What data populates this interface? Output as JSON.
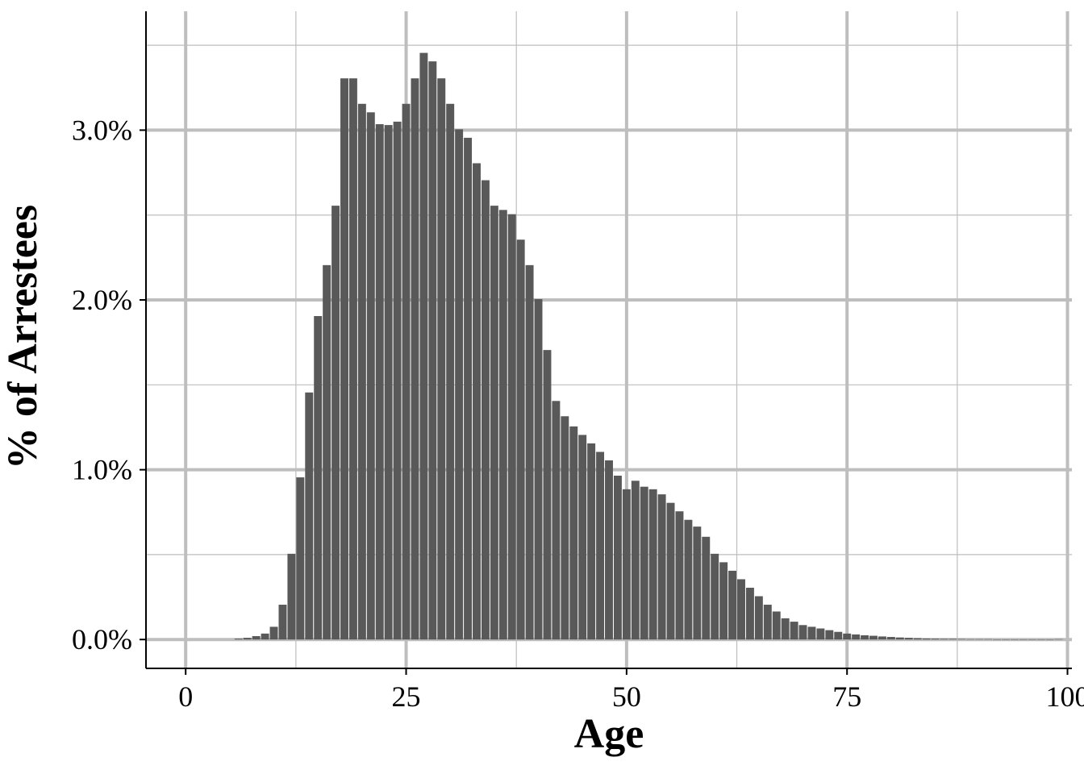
{
  "chart_data": {
    "type": "bar",
    "title": "",
    "xlabel": "Age",
    "ylabel": "% of Arrestees",
    "xlim": [
      -4.5,
      100.5
    ],
    "ylim": [
      -0.17,
      3.7
    ],
    "x_ticks": [
      0,
      25,
      50,
      75,
      100
    ],
    "x_tick_labels": [
      "0",
      "25",
      "50",
      "75",
      "100"
    ],
    "y_ticks": [
      0,
      1,
      2,
      3
    ],
    "y_tick_labels": [
      "0.0%",
      "1.0%",
      "2.0%",
      "3.0%"
    ],
    "grid": true,
    "bar_color": "#595959",
    "grid_color": "#bebebe",
    "series": [
      {
        "x": [
          6,
          7,
          8,
          9,
          10,
          11,
          12,
          13,
          14,
          15,
          16,
          17,
          18,
          19,
          20,
          21,
          22,
          23,
          24,
          25,
          26,
          27,
          28,
          29,
          30,
          31,
          32,
          33,
          34,
          35,
          36,
          37,
          38,
          39,
          40,
          41,
          42,
          43,
          44,
          45,
          46,
          47,
          48,
          49,
          50,
          51,
          52,
          53,
          54,
          55,
          56,
          57,
          58,
          59,
          60,
          61,
          62,
          63,
          64,
          65,
          66,
          67,
          68,
          69,
          70,
          71,
          72,
          73,
          74,
          75,
          76,
          77,
          78,
          79,
          80,
          81,
          82,
          83,
          84,
          85,
          86,
          87,
          88,
          89,
          90,
          91,
          92,
          93,
          94,
          95,
          96,
          97,
          98,
          99
        ],
        "values": [
          0.005,
          0.01,
          0.02,
          0.035,
          0.075,
          0.205,
          0.505,
          0.955,
          1.455,
          1.905,
          2.205,
          2.555,
          3.305,
          3.305,
          3.155,
          3.105,
          3.035,
          3.03,
          3.05,
          3.155,
          3.305,
          3.455,
          3.405,
          3.305,
          3.155,
          3.005,
          2.955,
          2.805,
          2.705,
          2.555,
          2.53,
          2.505,
          2.355,
          2.205,
          2.005,
          1.705,
          1.405,
          1.315,
          1.255,
          1.205,
          1.155,
          1.105,
          1.055,
          0.965,
          0.885,
          0.935,
          0.9,
          0.885,
          0.855,
          0.805,
          0.755,
          0.705,
          0.665,
          0.605,
          0.505,
          0.455,
          0.405,
          0.355,
          0.305,
          0.255,
          0.205,
          0.165,
          0.125,
          0.105,
          0.085,
          0.075,
          0.065,
          0.055,
          0.045,
          0.035,
          0.03,
          0.025,
          0.022,
          0.018,
          0.015,
          0.012,
          0.01,
          0.008,
          0.006,
          0.005,
          0.004,
          0.004,
          0.003,
          0.002,
          0.002,
          0.002,
          0.001,
          0.001,
          0.001,
          0.001,
          0.001,
          0.001,
          0.001,
          0.002
        ]
      }
    ]
  }
}
